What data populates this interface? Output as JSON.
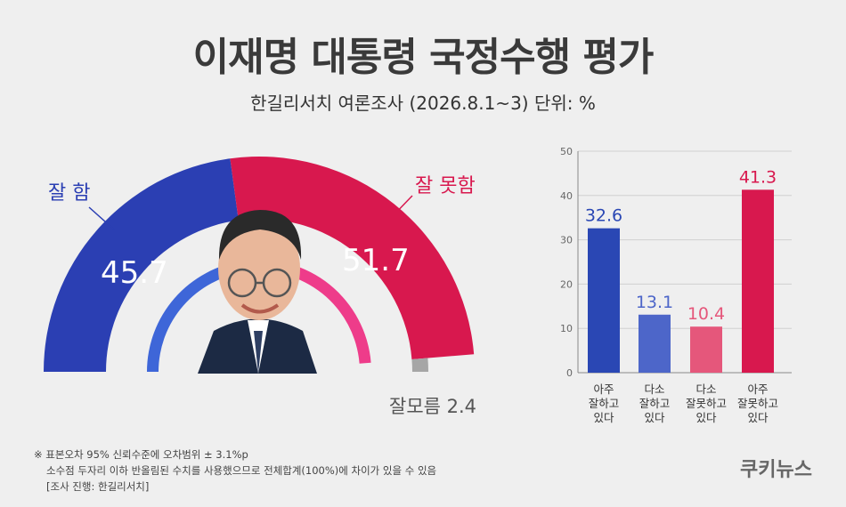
{
  "title": "이재명 대통령 국정수행 평가",
  "subtitle": "한길리서치 여론조사 (2026.8.1~3) 단위: %",
  "colors": {
    "positive": "#2b3fb3",
    "negative": "#d8184e",
    "unknown": "#a6a6a6",
    "bar_light_blue": "#4d66c9",
    "bar_light_red": "#e5577b"
  },
  "gauge": {
    "good_label": "잘 함",
    "good_value": "45.7",
    "bad_label": "잘 못함",
    "bad_value": "51.7",
    "unknown_label": "잘모름 2.4"
  },
  "portrait": "person-portrait",
  "chart_data": {
    "type": "bar",
    "categories": [
      [
        "아주",
        "잘하고",
        "있다"
      ],
      [
        "다소",
        "잘하고",
        "있다"
      ],
      [
        "다소",
        "잘못하고",
        "있다"
      ],
      [
        "아주",
        "잘못하고",
        "있다"
      ]
    ],
    "values": [
      32.6,
      13.1,
      10.4,
      41.3
    ],
    "value_labels": [
      "32.6",
      "13.1",
      "10.4",
      "41.3"
    ],
    "bar_colors": [
      "#2a47b4",
      "#4d66c9",
      "#e5577b",
      "#d8184e"
    ],
    "ylim": [
      0,
      50
    ],
    "yticks": [
      "0",
      "10",
      "20",
      "30",
      "40",
      "50"
    ]
  },
  "footnotes": [
    "※ 표본오차 95% 신뢰수준에 오차범위 ± 3.1%p",
    "소수점 두자리 이하 반올림된 수치를 사용했으므로 전체합계(100%)에 차이가 있을 수 있음",
    "[조사 진행: 한길리서치]"
  ],
  "brand": "쿠키뉴스"
}
